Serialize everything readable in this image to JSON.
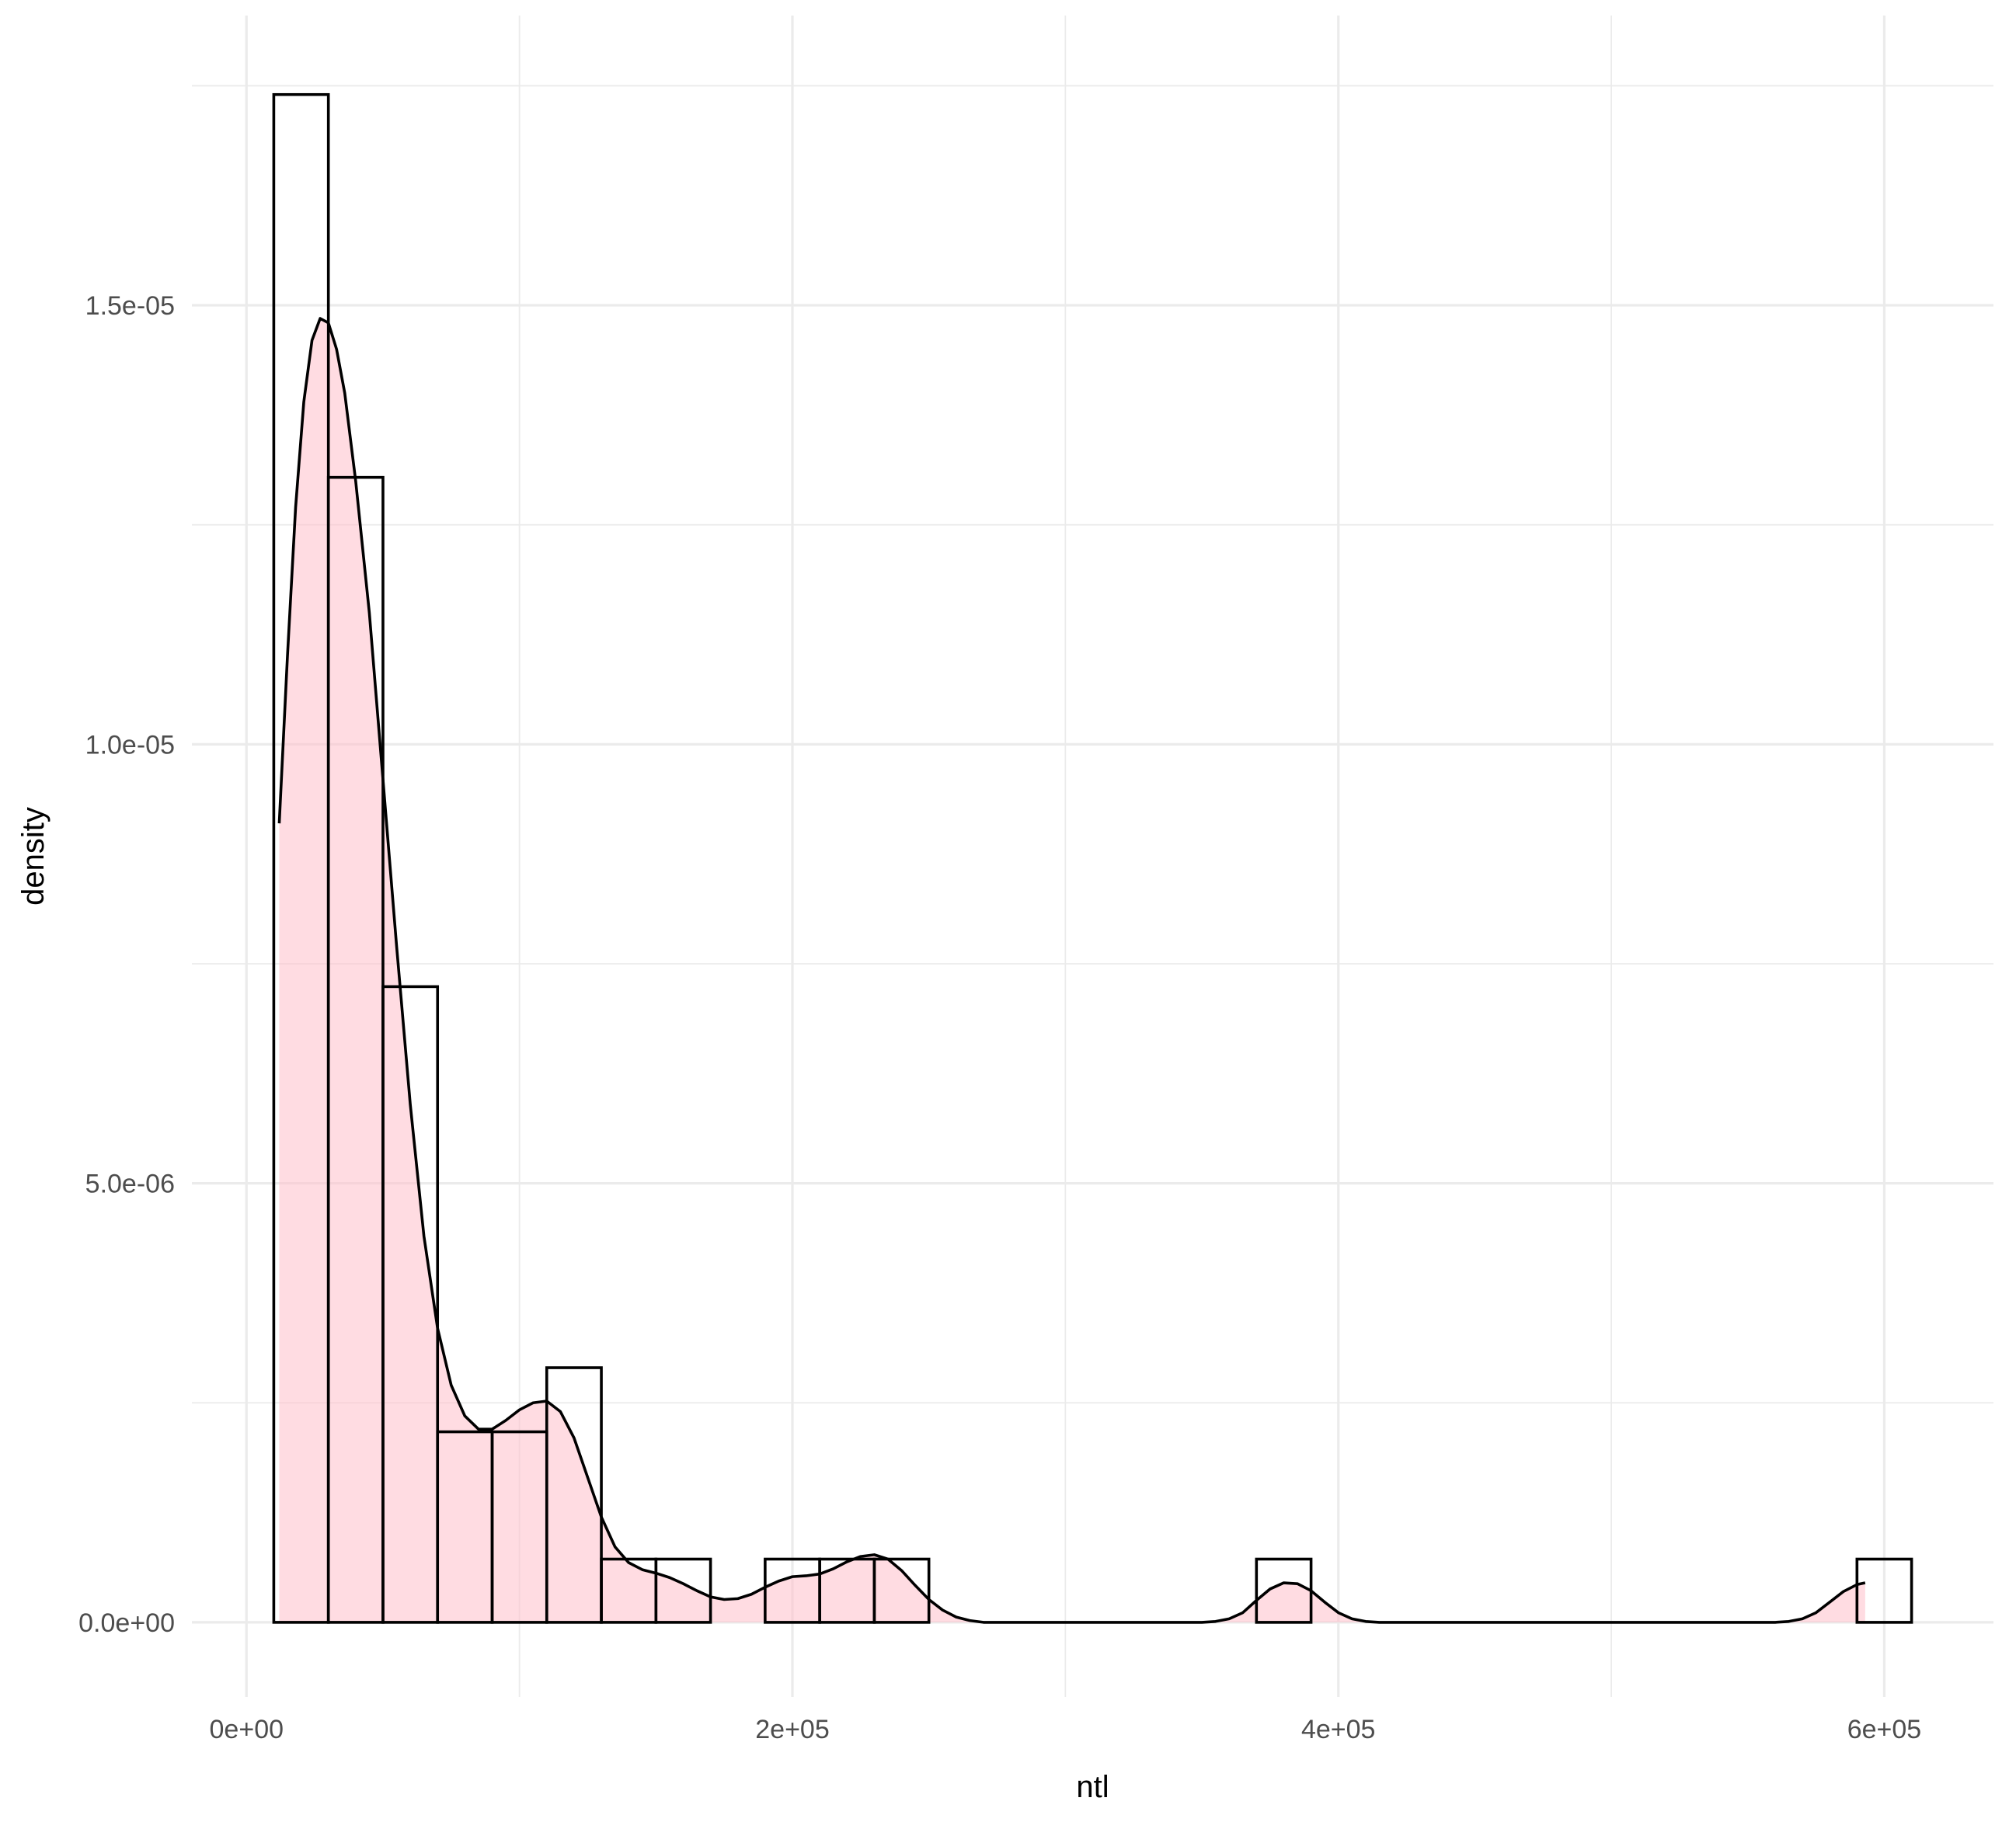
{
  "chart_data": {
    "type": "histogram",
    "title": "",
    "xlabel": "ntl",
    "ylabel": "density",
    "xlim": [
      -20000,
      640000
    ],
    "ylim": [
      -8.5e-07,
      1.83e-05
    ],
    "x_ticks": [
      {
        "value": 0,
        "label": "0e+00"
      },
      {
        "value": 200000,
        "label": "2e+05"
      },
      {
        "value": 400000,
        "label": "4e+05"
      },
      {
        "value": 600000,
        "label": "6e+05"
      }
    ],
    "x_minor_ticks": [
      100000,
      300000,
      500000
    ],
    "y_ticks": [
      {
        "value": 0,
        "label": "0.0e+00"
      },
      {
        "value": 5e-06,
        "label": "5.0e-06"
      },
      {
        "value": 1e-05,
        "label": "1.0e-05"
      },
      {
        "value": 1.5e-05,
        "label": "1.5e-05"
      }
    ],
    "y_minor_ticks": [
      2.5e-06,
      7.5e-06,
      1.25e-05,
      1.75e-05
    ],
    "grid": true,
    "bin_width": 20000,
    "bins": [
      {
        "x0": 10000,
        "x1": 30000,
        "density": 1.74e-05
      },
      {
        "x0": 30000,
        "x1": 50000,
        "density": 1.304e-05
      },
      {
        "x0": 50000,
        "x1": 70000,
        "density": 7.24e-06
      },
      {
        "x0": 70000,
        "x1": 90000,
        "density": 2.17e-06
      },
      {
        "x0": 90000,
        "x1": 110000,
        "density": 2.17e-06
      },
      {
        "x0": 110000,
        "x1": 130000,
        "density": 2.9e-06
      },
      {
        "x0": 130000,
        "x1": 150000,
        "density": 7.2e-07
      },
      {
        "x0": 150000,
        "x1": 170000,
        "density": 7.2e-07
      },
      {
        "x0": 170000,
        "x1": 190000,
        "density": 0
      },
      {
        "x0": 190000,
        "x1": 210000,
        "density": 7.2e-07
      },
      {
        "x0": 210000,
        "x1": 230000,
        "density": 7.2e-07
      },
      {
        "x0": 230000,
        "x1": 250000,
        "density": 7.2e-07
      },
      {
        "x0": 250000,
        "x1": 270000,
        "density": 0
      },
      {
        "x0": 270000,
        "x1": 290000,
        "density": 0
      },
      {
        "x0": 290000,
        "x1": 310000,
        "density": 0
      },
      {
        "x0": 310000,
        "x1": 330000,
        "density": 0
      },
      {
        "x0": 330000,
        "x1": 350000,
        "density": 0
      },
      {
        "x0": 350000,
        "x1": 370000,
        "density": 0
      },
      {
        "x0": 370000,
        "x1": 390000,
        "density": 7.2e-07
      },
      {
        "x0": 390000,
        "x1": 410000,
        "density": 0
      },
      {
        "x0": 410000,
        "x1": 430000,
        "density": 0
      },
      {
        "x0": 430000,
        "x1": 450000,
        "density": 0
      },
      {
        "x0": 450000,
        "x1": 470000,
        "density": 0
      },
      {
        "x0": 470000,
        "x1": 490000,
        "density": 0
      },
      {
        "x0": 490000,
        "x1": 510000,
        "density": 0
      },
      {
        "x0": 510000,
        "x1": 530000,
        "density": 0
      },
      {
        "x0": 530000,
        "x1": 550000,
        "density": 0
      },
      {
        "x0": 550000,
        "x1": 570000,
        "density": 0
      },
      {
        "x0": 570000,
        "x1": 590000,
        "density": 0
      },
      {
        "x0": 590000,
        "x1": 610000,
        "density": 7.2e-07
      }
    ],
    "density_curve": {
      "fill_color": "#ffc0cb",
      "fill_opacity": 0.55,
      "line_color": "#000000",
      "points": [
        [
          12000,
          9.1e-06
        ],
        [
          15000,
          1.1e-05
        ],
        [
          18000,
          1.27e-05
        ],
        [
          21000,
          1.39e-05
        ],
        [
          24000,
          1.46e-05
        ],
        [
          27000,
          1.485e-05
        ],
        [
          30000,
          1.48e-05
        ],
        [
          33000,
          1.45e-05
        ],
        [
          36000,
          1.4e-05
        ],
        [
          40000,
          1.3e-05
        ],
        [
          45000,
          1.15e-05
        ],
        [
          50000,
          9.6e-06
        ],
        [
          55000,
          7.7e-06
        ],
        [
          60000,
          5.9e-06
        ],
        [
          65000,
          4.4e-06
        ],
        [
          70000,
          3.35e-06
        ],
        [
          75000,
          2.7e-06
        ],
        [
          80000,
          2.35e-06
        ],
        [
          85000,
          2.2e-06
        ],
        [
          90000,
          2.2e-06
        ],
        [
          95000,
          2.3e-06
        ],
        [
          100000,
          2.42e-06
        ],
        [
          105000,
          2.5e-06
        ],
        [
          110000,
          2.52e-06
        ],
        [
          115000,
          2.4e-06
        ],
        [
          120000,
          2.1e-06
        ],
        [
          125000,
          1.65e-06
        ],
        [
          130000,
          1.2e-06
        ],
        [
          135000,
          8.6e-07
        ],
        [
          140000,
          6.8e-07
        ],
        [
          145000,
          6e-07
        ],
        [
          150000,
          5.6e-07
        ],
        [
          155000,
          5.1e-07
        ],
        [
          160000,
          4.4e-07
        ],
        [
          165000,
          3.6e-07
        ],
        [
          170000,
          2.9e-07
        ],
        [
          175000,
          2.6e-07
        ],
        [
          180000,
          2.7e-07
        ],
        [
          185000,
          3.2e-07
        ],
        [
          190000,
          4e-07
        ],
        [
          195000,
          4.7e-07
        ],
        [
          200000,
          5.2e-07
        ],
        [
          205000,
          5.3e-07
        ],
        [
          210000,
          5.5e-07
        ],
        [
          215000,
          6.1e-07
        ],
        [
          220000,
          6.9e-07
        ],
        [
          225000,
          7.5e-07
        ],
        [
          230000,
          7.7e-07
        ],
        [
          235000,
          7.2e-07
        ],
        [
          240000,
          5.9e-07
        ],
        [
          245000,
          4.2e-07
        ],
        [
          250000,
          2.6e-07
        ],
        [
          255000,
          1.4e-07
        ],
        [
          260000,
          6e-08
        ],
        [
          265000,
          2e-08
        ],
        [
          270000,
          0
        ],
        [
          350000,
          0
        ],
        [
          355000,
          1e-08
        ],
        [
          360000,
          4e-08
        ],
        [
          365000,
          1.1e-07
        ],
        [
          370000,
          2.5e-07
        ],
        [
          375000,
          3.8e-07
        ],
        [
          380000,
          4.5e-07
        ],
        [
          385000,
          4.4e-07
        ],
        [
          390000,
          3.6e-07
        ],
        [
          395000,
          2.3e-07
        ],
        [
          400000,
          1.1e-07
        ],
        [
          405000,
          4e-08
        ],
        [
          410000,
          1e-08
        ],
        [
          415000,
          0
        ],
        [
          560000,
          0
        ],
        [
          565000,
          1e-08
        ],
        [
          570000,
          4e-08
        ],
        [
          575000,
          1.1e-07
        ],
        [
          580000,
          2.3e-07
        ],
        [
          585000,
          3.5e-07
        ],
        [
          590000,
          4.3e-07
        ],
        [
          593000,
          4.5e-07
        ]
      ]
    }
  }
}
